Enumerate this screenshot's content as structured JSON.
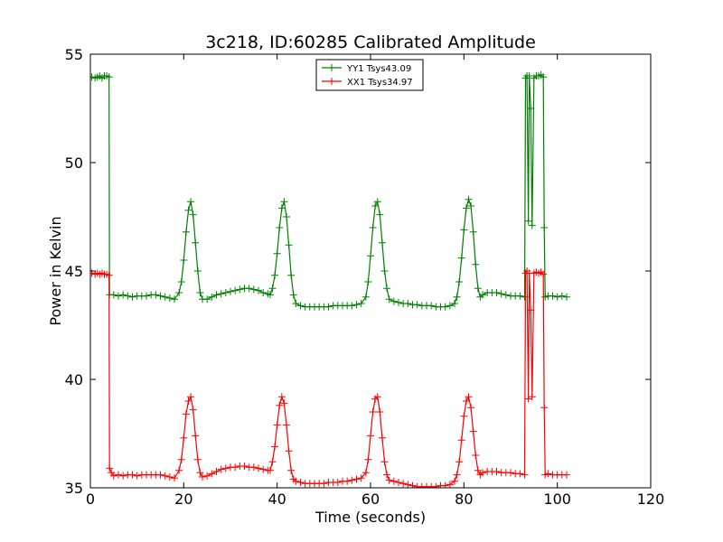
{
  "chart_data": {
    "type": "line",
    "title": "3c218, ID:60285 Calibrated Amplitude",
    "xlabel": "Time (seconds)",
    "ylabel": "Power in Kelvin",
    "xlim": [
      0,
      120
    ],
    "ylim": [
      35,
      55
    ],
    "xticks": [
      "0",
      "20",
      "40",
      "60",
      "80",
      "100",
      "120"
    ],
    "yticks": [
      "35",
      "40",
      "45",
      "50",
      "55"
    ],
    "grid": false,
    "legend_position": "top-center",
    "series": [
      {
        "name": "YY1 Tsys43.09",
        "color": "#008000",
        "marker": "+",
        "points": [
          [
            0.3,
            53.95
          ],
          [
            1.0,
            53.9
          ],
          [
            1.5,
            53.95
          ],
          [
            2.0,
            54.0
          ],
          [
            2.5,
            53.9
          ],
          [
            3.0,
            54.0
          ],
          [
            3.5,
            54.0
          ],
          [
            4.0,
            53.95
          ],
          [
            4.1,
            43.9
          ],
          [
            5.0,
            43.9
          ],
          [
            6.0,
            43.85
          ],
          [
            7.0,
            43.9
          ],
          [
            8.0,
            43.85
          ],
          [
            9.0,
            43.8
          ],
          [
            10.0,
            43.85
          ],
          [
            11.0,
            43.85
          ],
          [
            12.0,
            43.85
          ],
          [
            13.0,
            43.9
          ],
          [
            14.0,
            43.9
          ],
          [
            15.0,
            43.85
          ],
          [
            16.0,
            43.8
          ],
          [
            17.0,
            43.75
          ],
          [
            18.0,
            43.7
          ],
          [
            19.0,
            44.0
          ],
          [
            19.5,
            44.5
          ],
          [
            20.0,
            45.5
          ],
          [
            20.5,
            46.8
          ],
          [
            21.0,
            47.8
          ],
          [
            21.5,
            48.2
          ],
          [
            22.0,
            47.6
          ],
          [
            22.5,
            46.3
          ],
          [
            23.0,
            45.0
          ],
          [
            23.5,
            44.0
          ],
          [
            24.0,
            43.7
          ],
          [
            25.0,
            43.7
          ],
          [
            26.0,
            43.8
          ],
          [
            27.0,
            43.9
          ],
          [
            28.0,
            43.95
          ],
          [
            29.0,
            44.0
          ],
          [
            30.0,
            44.05
          ],
          [
            31.0,
            44.1
          ],
          [
            32.0,
            44.15
          ],
          [
            33.0,
            44.2
          ],
          [
            34.0,
            44.2
          ],
          [
            35.0,
            44.15
          ],
          [
            36.0,
            44.1
          ],
          [
            37.0,
            44.0
          ],
          [
            38.0,
            43.95
          ],
          [
            38.5,
            43.9
          ],
          [
            39.0,
            44.2
          ],
          [
            39.5,
            44.8
          ],
          [
            40.0,
            45.8
          ],
          [
            40.5,
            47.0
          ],
          [
            41.0,
            47.9
          ],
          [
            41.5,
            48.2
          ],
          [
            42.0,
            47.5
          ],
          [
            42.5,
            46.2
          ],
          [
            43.0,
            44.8
          ],
          [
            43.5,
            43.9
          ],
          [
            44.0,
            43.5
          ],
          [
            45.0,
            43.4
          ],
          [
            46.0,
            43.35
          ],
          [
            47.0,
            43.35
          ],
          [
            48.0,
            43.35
          ],
          [
            49.0,
            43.35
          ],
          [
            50.0,
            43.35
          ],
          [
            51.0,
            43.35
          ],
          [
            52.0,
            43.4
          ],
          [
            53.0,
            43.4
          ],
          [
            54.0,
            43.4
          ],
          [
            55.0,
            43.4
          ],
          [
            56.0,
            43.4
          ],
          [
            57.0,
            43.45
          ],
          [
            58.0,
            43.5
          ],
          [
            59.0,
            43.8
          ],
          [
            59.5,
            44.5
          ],
          [
            60.0,
            45.7
          ],
          [
            60.5,
            47.0
          ],
          [
            61.0,
            48.0
          ],
          [
            61.5,
            48.2
          ],
          [
            62.0,
            47.6
          ],
          [
            62.5,
            46.3
          ],
          [
            63.0,
            45.0
          ],
          [
            63.5,
            44.2
          ],
          [
            64.0,
            43.7
          ],
          [
            65.0,
            43.6
          ],
          [
            66.0,
            43.55
          ],
          [
            67.0,
            43.5
          ],
          [
            68.0,
            43.5
          ],
          [
            69.0,
            43.45
          ],
          [
            70.0,
            43.45
          ],
          [
            71.0,
            43.4
          ],
          [
            72.0,
            43.4
          ],
          [
            73.0,
            43.4
          ],
          [
            74.0,
            43.35
          ],
          [
            75.0,
            43.35
          ],
          [
            76.0,
            43.35
          ],
          [
            77.0,
            43.4
          ],
          [
            78.0,
            43.5
          ],
          [
            78.5,
            43.8
          ],
          [
            79.0,
            44.5
          ],
          [
            79.5,
            45.6
          ],
          [
            80.0,
            46.9
          ],
          [
            80.5,
            47.9
          ],
          [
            81.0,
            48.3
          ],
          [
            81.5,
            48.0
          ],
          [
            82.0,
            46.8
          ],
          [
            82.5,
            45.3
          ],
          [
            83.0,
            44.2
          ],
          [
            83.5,
            43.8
          ],
          [
            84.0,
            43.9
          ],
          [
            85.0,
            44.0
          ],
          [
            86.0,
            44.0
          ],
          [
            87.0,
            44.0
          ],
          [
            88.0,
            43.95
          ],
          [
            89.0,
            43.9
          ],
          [
            90.0,
            43.85
          ],
          [
            91.0,
            43.85
          ],
          [
            92.0,
            43.85
          ],
          [
            93.0,
            43.8
          ],
          [
            93.2,
            53.9
          ],
          [
            93.5,
            54.0
          ],
          [
            93.8,
            47.3
          ],
          [
            94.0,
            54.0
          ],
          [
            94.3,
            52.5
          ],
          [
            94.6,
            47.1
          ],
          [
            95.0,
            53.9
          ],
          [
            95.5,
            54.0
          ],
          [
            96.0,
            54.0
          ],
          [
            96.5,
            54.05
          ],
          [
            97.0,
            53.95
          ],
          [
            97.2,
            47.0
          ],
          [
            97.4,
            43.8
          ],
          [
            98.0,
            43.85
          ],
          [
            99.0,
            43.85
          ],
          [
            100.0,
            43.8
          ],
          [
            101.0,
            43.85
          ],
          [
            102.0,
            43.8
          ]
        ]
      },
      {
        "name": "XX1 Tsys34.97",
        "color": "#ff0000",
        "marker": "+",
        "points": [
          [
            0.3,
            44.9
          ],
          [
            1.0,
            44.85
          ],
          [
            1.5,
            44.9
          ],
          [
            2.0,
            44.85
          ],
          [
            2.5,
            44.9
          ],
          [
            3.0,
            44.85
          ],
          [
            3.5,
            44.85
          ],
          [
            4.0,
            44.8
          ],
          [
            4.1,
            35.9
          ],
          [
            4.5,
            35.7
          ],
          [
            5.0,
            35.55
          ],
          [
            6.0,
            35.6
          ],
          [
            7.0,
            35.55
          ],
          [
            8.0,
            35.6
          ],
          [
            9.0,
            35.6
          ],
          [
            10.0,
            35.55
          ],
          [
            11.0,
            35.6
          ],
          [
            12.0,
            35.6
          ],
          [
            13.0,
            35.6
          ],
          [
            14.0,
            35.6
          ],
          [
            15.0,
            35.6
          ],
          [
            16.0,
            35.55
          ],
          [
            17.0,
            35.5
          ],
          [
            18.0,
            35.45
          ],
          [
            19.0,
            35.8
          ],
          [
            19.5,
            36.3
          ],
          [
            20.0,
            37.3
          ],
          [
            20.5,
            38.4
          ],
          [
            21.0,
            39.0
          ],
          [
            21.5,
            39.2
          ],
          [
            22.0,
            38.6
          ],
          [
            22.5,
            37.4
          ],
          [
            23.0,
            36.3
          ],
          [
            23.5,
            35.7
          ],
          [
            24.0,
            35.5
          ],
          [
            25.0,
            35.55
          ],
          [
            26.0,
            35.65
          ],
          [
            27.0,
            35.75
          ],
          [
            28.0,
            35.85
          ],
          [
            29.0,
            35.9
          ],
          [
            30.0,
            35.95
          ],
          [
            31.0,
            35.95
          ],
          [
            32.0,
            36.0
          ],
          [
            33.0,
            36.0
          ],
          [
            34.0,
            35.95
          ],
          [
            35.0,
            35.95
          ],
          [
            36.0,
            35.9
          ],
          [
            37.0,
            35.85
          ],
          [
            38.0,
            35.8
          ],
          [
            38.5,
            35.8
          ],
          [
            39.0,
            36.2
          ],
          [
            39.5,
            36.9
          ],
          [
            40.0,
            37.9
          ],
          [
            40.5,
            38.8
          ],
          [
            41.0,
            39.2
          ],
          [
            41.5,
            38.9
          ],
          [
            42.0,
            37.9
          ],
          [
            42.5,
            36.7
          ],
          [
            43.0,
            35.8
          ],
          [
            43.5,
            35.4
          ],
          [
            44.0,
            35.3
          ],
          [
            45.0,
            35.25
          ],
          [
            46.0,
            35.2
          ],
          [
            47.0,
            35.2
          ],
          [
            48.0,
            35.2
          ],
          [
            49.0,
            35.2
          ],
          [
            50.0,
            35.2
          ],
          [
            51.0,
            35.25
          ],
          [
            52.0,
            35.25
          ],
          [
            53.0,
            35.25
          ],
          [
            54.0,
            35.3
          ],
          [
            55.0,
            35.3
          ],
          [
            56.0,
            35.35
          ],
          [
            57.0,
            35.4
          ],
          [
            58.0,
            35.45
          ],
          [
            59.0,
            35.7
          ],
          [
            59.5,
            36.3
          ],
          [
            60.0,
            37.4
          ],
          [
            60.5,
            38.5
          ],
          [
            61.0,
            39.1
          ],
          [
            61.5,
            39.2
          ],
          [
            62.0,
            38.5
          ],
          [
            62.5,
            37.3
          ],
          [
            63.0,
            36.2
          ],
          [
            63.5,
            35.6
          ],
          [
            64.0,
            35.35
          ],
          [
            65.0,
            35.3
          ],
          [
            66.0,
            35.25
          ],
          [
            67.0,
            35.2
          ],
          [
            68.0,
            35.15
          ],
          [
            69.0,
            35.1
          ],
          [
            70.0,
            35.05
          ],
          [
            71.0,
            35.05
          ],
          [
            72.0,
            35.05
          ],
          [
            73.0,
            35.05
          ],
          [
            74.0,
            35.05
          ],
          [
            75.0,
            35.1
          ],
          [
            76.0,
            35.1
          ],
          [
            77.0,
            35.15
          ],
          [
            78.0,
            35.3
          ],
          [
            78.5,
            35.6
          ],
          [
            79.0,
            36.2
          ],
          [
            79.5,
            37.2
          ],
          [
            80.0,
            38.3
          ],
          [
            80.5,
            39.0
          ],
          [
            81.0,
            39.2
          ],
          [
            81.5,
            38.7
          ],
          [
            82.0,
            37.6
          ],
          [
            82.5,
            36.5
          ],
          [
            83.0,
            35.8
          ],
          [
            83.5,
            35.6
          ],
          [
            84.0,
            35.7
          ],
          [
            85.0,
            35.75
          ],
          [
            86.0,
            35.75
          ],
          [
            87.0,
            35.75
          ],
          [
            88.0,
            35.7
          ],
          [
            89.0,
            35.7
          ],
          [
            90.0,
            35.7
          ],
          [
            91.0,
            35.65
          ],
          [
            92.0,
            35.65
          ],
          [
            93.0,
            35.6
          ],
          [
            93.2,
            44.9
          ],
          [
            93.5,
            45.0
          ],
          [
            93.8,
            39.1
          ],
          [
            94.0,
            44.9
          ],
          [
            94.3,
            43.2
          ],
          [
            94.6,
            39.2
          ],
          [
            95.0,
            44.9
          ],
          [
            95.5,
            44.95
          ],
          [
            96.0,
            44.9
          ],
          [
            96.5,
            44.95
          ],
          [
            97.0,
            44.85
          ],
          [
            97.2,
            38.7
          ],
          [
            97.4,
            35.6
          ],
          [
            98.0,
            35.65
          ],
          [
            99.0,
            35.6
          ],
          [
            100.0,
            35.6
          ],
          [
            101.0,
            35.6
          ],
          [
            102.0,
            35.6
          ]
        ]
      }
    ]
  }
}
